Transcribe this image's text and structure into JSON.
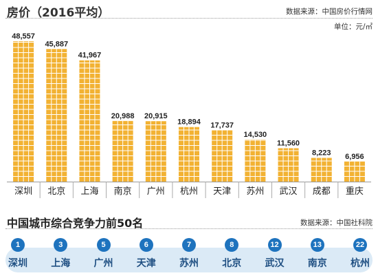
{
  "header": {
    "title": "房价（2016平均）",
    "source": "数据来源：中国房价行情网",
    "unit": "单位：元/㎡"
  },
  "colors": {
    "bar": "#f2b233",
    "bar_grid": "#ffffff",
    "rank_bg": "#dbeaf6",
    "rank_circle": "#1e73be",
    "rank_text": "#1f4f82"
  },
  "chart_data": {
    "type": "bar",
    "title": "房价（2016平均）",
    "xlabel": "",
    "ylabel": "",
    "unit": "元/㎡",
    "categories": [
      "深圳",
      "北京",
      "上海",
      "南京",
      "广州",
      "杭州",
      "天津",
      "苏州",
      "武汉",
      "成都",
      "重庆"
    ],
    "values": [
      48557,
      45887,
      41967,
      20988,
      20915,
      18894,
      17737,
      14530,
      11560,
      8223,
      6956
    ],
    "value_labels": [
      "48,557",
      "45,887",
      "41,967",
      "20,988",
      "20,915",
      "18,894",
      "17,737",
      "14,530",
      "11,560",
      "8,223",
      "6,956"
    ],
    "ylim": [
      0,
      50000
    ],
    "grid": false,
    "legend": "none"
  },
  "ranking": {
    "title": "中国城市综合竞争力前50名",
    "source": "数据来源：中国社科院",
    "items": [
      {
        "rank": "1",
        "city": "深圳"
      },
      {
        "rank": "3",
        "city": "上海"
      },
      {
        "rank": "5",
        "city": "广州"
      },
      {
        "rank": "6",
        "city": "天津"
      },
      {
        "rank": "7",
        "city": "苏州"
      },
      {
        "rank": "8",
        "city": "北京"
      },
      {
        "rank": "12",
        "city": "武汉"
      },
      {
        "rank": "13",
        "city": "南京"
      },
      {
        "rank": "22",
        "city": "杭州"
      }
    ]
  }
}
